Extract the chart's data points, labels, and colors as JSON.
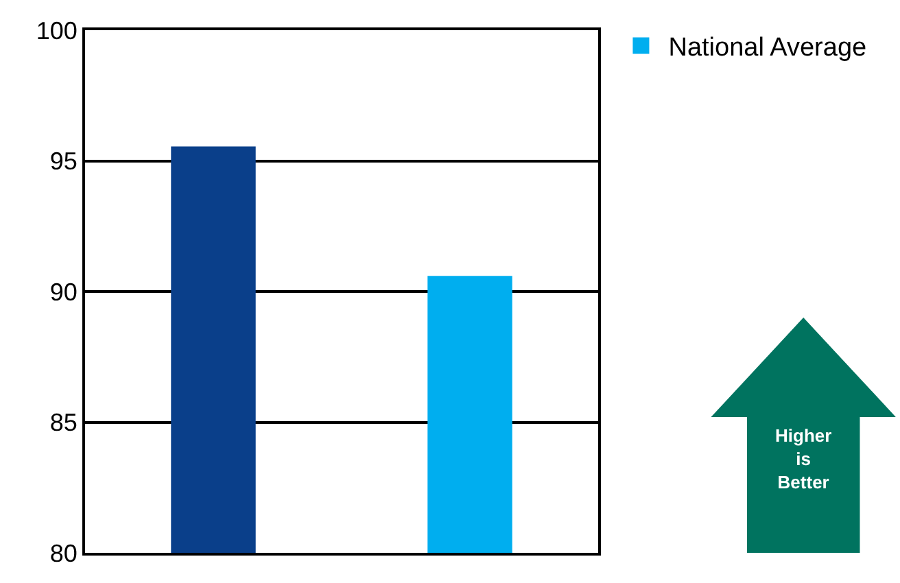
{
  "chart_data": {
    "type": "bar",
    "categories": [
      null,
      null
    ],
    "series": [
      {
        "color": "#0a3f8a",
        "values": [
          95.55,
          null
        ]
      },
      {
        "name": "National Average",
        "color": "#00aeef",
        "values": [
          null,
          90.6
        ]
      }
    ],
    "ylim": [
      80,
      100
    ],
    "yticks": [
      80,
      85,
      90,
      95,
      100
    ],
    "grid": "y",
    "legend": "top right",
    "annotations": [
      "Higher\nis\nBetter"
    ]
  }
}
